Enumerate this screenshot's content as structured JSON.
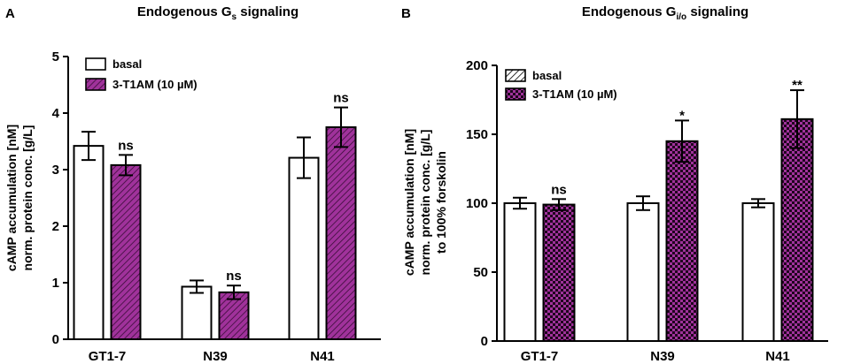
{
  "colors": {
    "magenta": "#a0329b",
    "white": "#ffffff",
    "black": "#000000"
  },
  "chart_data": [
    {
      "panel": "A",
      "type": "bar",
      "title_main": "Endogenous G",
      "title_sub": "s",
      "title_tail": " signaling",
      "ylabel_line1": "cAMP accumulation [nM]",
      "ylabel_line2": "norm. protein conc. [g/L]",
      "ylim": [
        0,
        5
      ],
      "yticks": [
        "0",
        "1",
        "2",
        "3",
        "4",
        "5"
      ],
      "categories": [
        "GT1-7",
        "N39",
        "N41"
      ],
      "legend": [
        "basal",
        "3-T1AM (10 µM)"
      ],
      "series": [
        {
          "name": "basal",
          "values": [
            3.42,
            0.93,
            3.21
          ],
          "errors": [
            0.25,
            0.11,
            0.36
          ]
        },
        {
          "name": "3-T1AM (10 µM)",
          "values": [
            3.08,
            0.83,
            3.75
          ],
          "errors": [
            0.18,
            0.12,
            0.35
          ]
        }
      ],
      "annotations": [
        "ns",
        "ns",
        "ns"
      ]
    },
    {
      "panel": "B",
      "type": "bar",
      "title_main": "Endogenous G",
      "title_sub": "i/o",
      "title_tail": " signaling",
      "ylabel_line1": "cAMP accumulation [nM]",
      "ylabel_line2": "norm. protein conc. [g/L]",
      "ylabel_line3": "to 100% forskolin",
      "ylim": [
        0,
        200
      ],
      "yticks": [
        "0",
        "50",
        "100",
        "150",
        "200"
      ],
      "categories": [
        "GT1-7",
        "N39",
        "N41"
      ],
      "legend": [
        "basal",
        "3-T1AM (10 µM)"
      ],
      "series": [
        {
          "name": "basal",
          "values": [
            100,
            100,
            100
          ],
          "errors": [
            4,
            5,
            3
          ]
        },
        {
          "name": "3-T1AM (10 µM)",
          "values": [
            99,
            145,
            161
          ],
          "errors": [
            4,
            15,
            21
          ]
        }
      ],
      "annotations": [
        "ns",
        "*",
        "**"
      ]
    }
  ]
}
